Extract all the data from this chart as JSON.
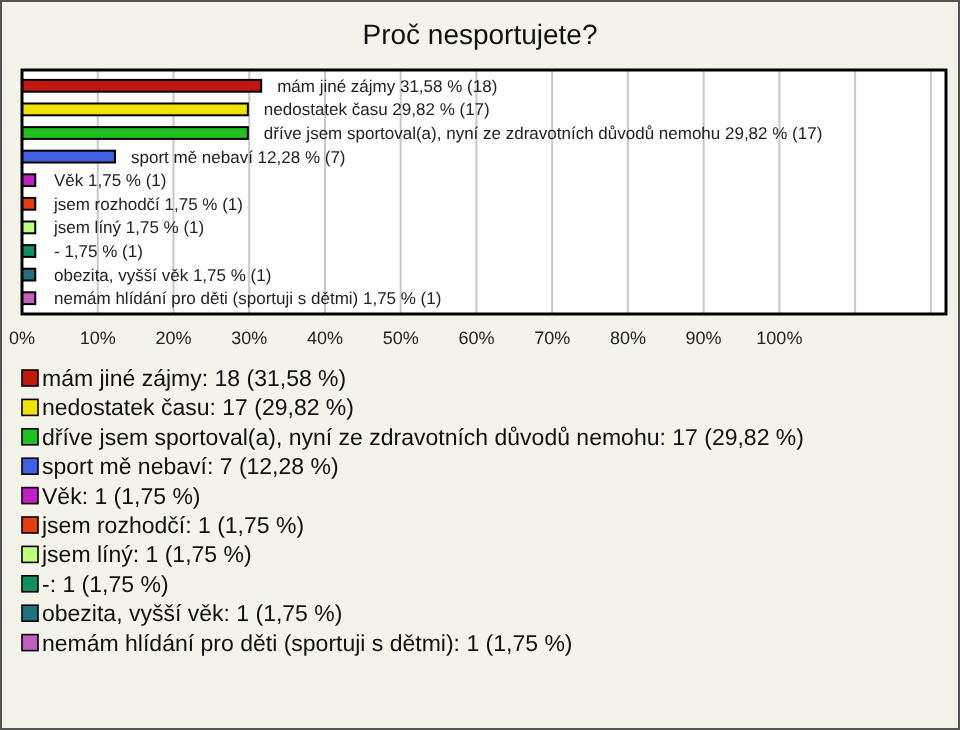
{
  "chart_data": {
    "type": "bar",
    "orientation": "horizontal",
    "title": "Proč nesportujete?",
    "categories": [
      "mám jiné zájmy",
      "nedostatek času",
      "dříve jsem sportoval(a), nyní ze zdravotních důvodů nemohu",
      "sport mě nebaví",
      "Věk",
      "jsem rozhodčí",
      "jsem líný",
      "-",
      "obezita,  vyšší věk",
      "nemám hlídání pro děti (sportuji s dětmi)"
    ],
    "values": [
      31.58,
      29.82,
      29.82,
      12.28,
      1.75,
      1.75,
      1.75,
      1.75,
      1.75,
      1.75
    ],
    "value_labels": [
      "31,58 % (18)",
      "29,82 % (17)",
      "29,82 % (17)",
      "12,28 % (7)",
      "1,75 % (1)",
      "1,75 % (1)",
      "1,75 % (1)",
      "1,75 % (1)",
      "1,75 % (1)",
      "1,75 % (1)"
    ],
    "colors": [
      "#c0180c",
      "#f0e000",
      "#20c020",
      "#4060e0",
      "#c020c0",
      "#e04010",
      "#c0ff80",
      "#109060",
      "#207080",
      "#c060c0"
    ],
    "xlim": [
      0,
      122
    ],
    "xticks": [
      {
        "value": 0,
        "label": "0%"
      },
      {
        "value": 10,
        "label": "10%"
      },
      {
        "value": 20,
        "label": "20%"
      },
      {
        "value": 30,
        "label": "30%"
      },
      {
        "value": 40,
        "label": "40%"
      },
      {
        "value": 50,
        "label": "50%"
      },
      {
        "value": 60,
        "label": "60%"
      },
      {
        "value": 70,
        "label": "70%"
      },
      {
        "value": 80,
        "label": "80%"
      },
      {
        "value": 90,
        "label": "90%"
      },
      {
        "value": 100,
        "label": "100%"
      },
      {
        "value": 110,
        "label": null
      },
      {
        "value": 120,
        "label": null
      }
    ],
    "grid": "x",
    "annotations": [
      "mám jiné zájmy: 18 (31,58 %)",
      "nedostatek času: 17 (29,82 %)",
      "dříve jsem sportoval(a), nyní ze zdravotních důvodů nemohu: 17 (29,82 %)",
      "sport mě nebaví: 7 (12,28 %)",
      "Věk: 1 (1,75 %)",
      "jsem rozhodčí: 1 (1,75 %)",
      "jsem líný: 1 (1,75 %)",
      "-: 1 (1,75 %)",
      "obezita,  vyšší věk: 1 (1,75 %)",
      "nemám hlídání pro děti (sportuji s dětmi): 1 (1,75 %)"
    ]
  }
}
